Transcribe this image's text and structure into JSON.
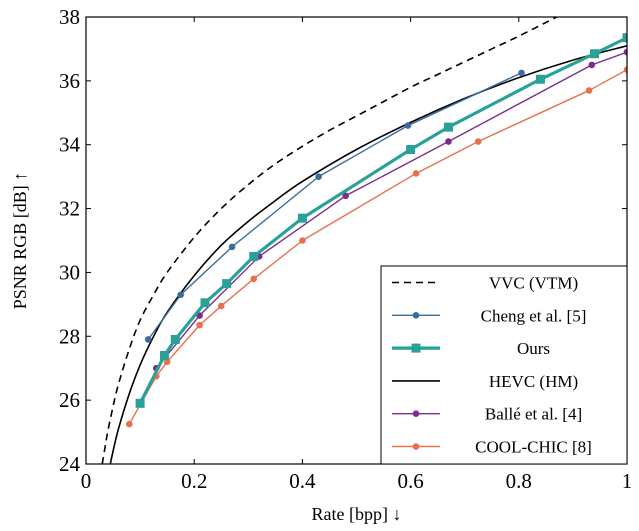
{
  "chart_data": {
    "type": "line",
    "xlabel": "Rate [bpp] ↓",
    "ylabel": "PSNR RGB [dB] ↑",
    "xlim": [
      0,
      1
    ],
    "ylim": [
      24,
      38
    ],
    "xticks": [
      0,
      0.2,
      0.4,
      0.6,
      0.8,
      1
    ],
    "xtick_labels": [
      "0",
      "0.2",
      "0.4",
      "0.6",
      "0.8",
      "1"
    ],
    "yticks": [
      24,
      26,
      28,
      30,
      32,
      34,
      36,
      38
    ],
    "ytick_labels": [
      "24",
      "26",
      "28",
      "30",
      "32",
      "34",
      "36",
      "38"
    ],
    "grid": false,
    "legend_position": "bottom-right",
    "series": [
      {
        "name": "VVC (VTM)",
        "color": "#000000",
        "style": "dashed",
        "marker": "none",
        "x": [
          0.03,
          0.035,
          0.04,
          0.05,
          0.06,
          0.08,
          0.1,
          0.125,
          0.15,
          0.2,
          0.25,
          0.3,
          0.35,
          0.4,
          0.45,
          0.5,
          0.55,
          0.6,
          0.65,
          0.7,
          0.75,
          0.8,
          0.87
        ],
        "y": [
          24.0,
          24.5,
          25.0,
          25.8,
          26.5,
          27.6,
          28.5,
          29.3,
          30.0,
          31.1,
          32.0,
          32.75,
          33.4,
          33.95,
          34.45,
          34.9,
          35.35,
          35.8,
          36.2,
          36.6,
          37.0,
          37.4,
          38.0
        ]
      },
      {
        "name": "Cheng et al. [5]",
        "color": "#3a6c9c",
        "style": "solid",
        "marker": "circle",
        "x": [
          0.115,
          0.175,
          0.27,
          0.43,
          0.595,
          0.805
        ],
        "y": [
          27.9,
          29.3,
          30.8,
          33.0,
          34.6,
          36.25
        ]
      },
      {
        "name": "Ours",
        "color": "#2aa198",
        "style": "solid",
        "marker": "square",
        "x": [
          0.1,
          0.145,
          0.165,
          0.22,
          0.26,
          0.31,
          0.4,
          0.6,
          0.67,
          0.84,
          0.94,
          1.0
        ],
        "y": [
          25.9,
          27.4,
          27.9,
          29.05,
          29.65,
          30.5,
          31.7,
          33.85,
          34.55,
          36.05,
          36.85,
          37.35
        ]
      },
      {
        "name": "HEVC (HM)",
        "color": "#000000",
        "style": "solid",
        "marker": "none",
        "x": [
          0.045,
          0.05,
          0.06,
          0.08,
          0.1,
          0.125,
          0.15,
          0.2,
          0.25,
          0.3,
          0.35,
          0.4,
          0.5,
          0.6,
          0.7,
          0.8,
          0.9,
          1.0
        ],
        "y": [
          24.0,
          24.4,
          25.1,
          26.2,
          27.1,
          28.0,
          28.75,
          29.9,
          30.85,
          31.6,
          32.25,
          32.85,
          33.85,
          34.7,
          35.45,
          36.1,
          36.65,
          37.1
        ]
      },
      {
        "name": "Ballé et al. [4]",
        "color": "#7b2d8e",
        "style": "solid",
        "marker": "circle",
        "x": [
          0.13,
          0.21,
          0.32,
          0.48,
          0.67,
          0.935,
          1.0
        ],
        "y": [
          27.0,
          28.65,
          30.5,
          32.4,
          34.1,
          36.5,
          36.9
        ]
      },
      {
        "name": "COOL-CHIC [8]",
        "color": "#e8704f",
        "style": "solid",
        "marker": "circle",
        "x": [
          0.08,
          0.13,
          0.15,
          0.21,
          0.25,
          0.31,
          0.4,
          0.61,
          0.725,
          0.93,
          1.0
        ],
        "y": [
          25.25,
          26.75,
          27.2,
          28.35,
          28.95,
          29.8,
          31.0,
          33.1,
          34.1,
          35.7,
          36.35
        ]
      }
    ]
  }
}
